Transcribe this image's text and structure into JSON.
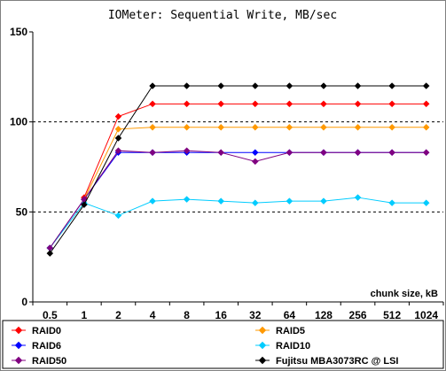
{
  "chart_data": {
    "type": "line",
    "title": "IOMeter: Sequential  Write, MB/sec",
    "xlabel": "chunk size, kB",
    "ylabel": "",
    "ylim": [
      0,
      150
    ],
    "yticks": [
      0,
      50,
      100,
      150
    ],
    "gridlines_at": [
      50,
      100
    ],
    "grid_style": "dashed",
    "legend_position": "bottom",
    "categories": [
      "0.5",
      "1",
      "2",
      "4",
      "8",
      "16",
      "32",
      "64",
      "128",
      "256",
      "512",
      "1024"
    ],
    "series": [
      {
        "name": "RAID0",
        "color": "#ff0000",
        "marker": "diamond",
        "values": [
          null,
          58,
          103,
          110,
          110,
          110,
          110,
          110,
          110,
          110,
          110,
          110
        ]
      },
      {
        "name": "RAID5",
        "color": "#ff9900",
        "marker": "diamond",
        "values": [
          30,
          57,
          96,
          97,
          97,
          97,
          97,
          97,
          97,
          97,
          97,
          97
        ]
      },
      {
        "name": "RAID6",
        "color": "#0000ff",
        "marker": "diamond",
        "values": [
          30,
          57,
          83,
          83,
          83,
          83,
          83,
          83,
          83,
          83,
          83,
          83
        ]
      },
      {
        "name": "RAID10",
        "color": "#00ccff",
        "marker": "diamond",
        "values": [
          30,
          55,
          48,
          56,
          57,
          56,
          55,
          56,
          56,
          58,
          55,
          55
        ]
      },
      {
        "name": "RAID50",
        "color": "#800080",
        "marker": "diamond",
        "values": [
          30,
          57,
          84,
          83,
          84,
          83,
          78,
          83,
          83,
          83,
          83,
          83
        ]
      },
      {
        "name": "Fujitsu MBA3073RC @ LSI",
        "color": "#000000",
        "marker": "diamond",
        "values": [
          27,
          54,
          91,
          120,
          120,
          120,
          120,
          120,
          120,
          120,
          120,
          120
        ]
      }
    ]
  }
}
